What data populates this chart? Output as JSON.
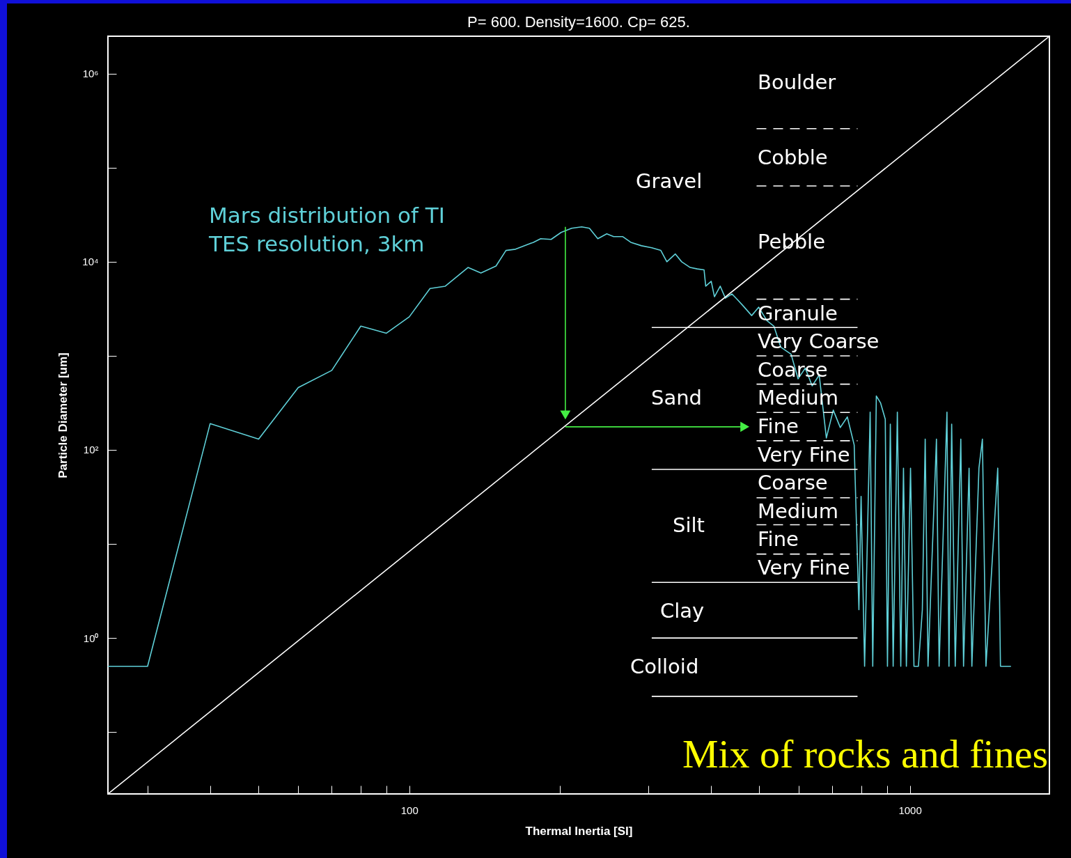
{
  "chart_data": {
    "type": "line",
    "title": "P= 600. Density=1600. Cp= 625.",
    "xlabel": "Thermal Inertia [SI]",
    "ylabel": "Particle Diameter [um]",
    "log": "xy",
    "grid": false,
    "xlim": [
      25,
      1900
    ],
    "ylim": [
      0.022,
      2500000
    ],
    "xticks": [
      {
        "value": 30,
        "label": null
      },
      {
        "value": 40,
        "label": null
      },
      {
        "value": 50,
        "label": null
      },
      {
        "value": 60,
        "label": null
      },
      {
        "value": 70,
        "label": null
      },
      {
        "value": 80,
        "label": null
      },
      {
        "value": 90,
        "label": null
      },
      100,
      {
        "value": 200,
        "label": null
      },
      {
        "value": 300,
        "label": null
      },
      {
        "value": 400,
        "label": null
      },
      {
        "value": 500,
        "label": null
      },
      {
        "value": 600,
        "label": null
      },
      {
        "value": 700,
        "label": null
      },
      {
        "value": 800,
        "label": null
      },
      {
        "value": 900,
        "label": null
      },
      1000
    ],
    "yticks": [
      {
        "value": 0.1,
        "label": null
      },
      {
        "value": 1,
        "label": "10⁰"
      },
      {
        "value": 10,
        "label": null
      },
      {
        "value": 100,
        "label": "10²"
      },
      {
        "value": 1000,
        "label": null
      },
      {
        "value": 10000,
        "label": "10⁴"
      },
      {
        "value": 100000,
        "label": null
      },
      {
        "value": 1000000,
        "label": "10⁶"
      }
    ],
    "series": [
      {
        "name": "Mars distribution of TI\nTES resolution, 3km",
        "color": "#5fd0d8",
        "x": [
          25,
          30,
          40,
          50,
          60,
          70,
          80,
          90,
          100,
          110,
          118,
          131,
          139,
          149,
          156,
          163,
          177,
          183,
          192,
          201,
          211,
          221,
          229,
          238,
          248,
          256,
          267,
          277,
          291,
          305,
          318,
          327,
          340,
          350,
          364,
          376,
          388,
          391,
          401,
          407,
          418,
          428,
          441,
          452,
          463,
          483,
          499,
          518,
          535,
          552,
          579,
          598,
          618,
          638,
          659,
          681,
          703,
          726,
          750,
          774,
          791,
          799,
          812,
          833,
          843,
          857,
          874,
          893,
          902,
          914,
          926,
          944,
          959,
          971,
          984,
          1003,
          1019,
          1040,
          1059,
          1073,
          1087,
          1130,
          1144,
          1186,
          1197,
          1212,
          1232,
          1264,
          1280,
          1313,
          1330,
          1374,
          1396,
          1419,
          1498,
          1517,
          1592
        ],
        "values": [
          0.5,
          0.5,
          190,
          130,
          460,
          700,
          2070,
          1740,
          2600,
          5200,
          5500,
          8700,
          7600,
          9000,
          13200,
          13600,
          16100,
          17600,
          17300,
          20500,
          22700,
          23500,
          22700,
          17600,
          19800,
          18500,
          18500,
          16100,
          14800,
          14100,
          13200,
          10000,
          12100,
          10000,
          8700,
          8400,
          8200,
          5500,
          6200,
          4250,
          5500,
          4100,
          4550,
          3970,
          3460,
          2680,
          3290,
          2370,
          2070,
          1240,
          1040,
          570,
          740,
          480,
          625,
          134,
          265,
          173,
          224,
          113,
          2.0,
          32,
          0.5,
          252,
          0.5,
          374,
          315,
          212,
          0.5,
          188,
          0.5,
          252,
          0.5,
          64,
          0.5,
          64,
          0.5,
          0.5,
          2.0,
          130,
          0.5,
          130,
          0.5,
          252,
          0.5,
          188,
          0.5,
          130,
          0.5,
          64,
          0.5,
          64,
          130,
          0.5,
          64,
          0.5,
          0.5
        ]
      },
      {
        "color": "#ffffff",
        "x": [
          25,
          1900
        ],
        "values": [
          0.022,
          2500000
        ]
      },
      {
        "color": "#ffffff",
        "line_style": "solid",
        "x": [
          305,
          786
        ],
        "values": [
          2000,
          2000
        ]
      },
      {
        "color": "#ffffff",
        "line_style": "solid",
        "x": [
          305,
          786
        ],
        "values": [
          62,
          62
        ]
      },
      {
        "color": "#ffffff",
        "line_style": "solid",
        "x": [
          305,
          786
        ],
        "values": [
          3.9,
          3.9
        ]
      },
      {
        "color": "#ffffff",
        "line_style": "solid",
        "x": [
          305,
          786
        ],
        "values": [
          1.0,
          1.0
        ]
      },
      {
        "color": "#ffffff",
        "line_style": "solid",
        "x": [
          305,
          786
        ],
        "values": [
          0.24,
          0.24
        ]
      },
      {
        "color": "#ffffff",
        "line_style": "dashed",
        "x": [
          494,
          786
        ],
        "values": [
          260000,
          260000
        ]
      },
      {
        "color": "#ffffff",
        "line_style": "dashed",
        "x": [
          494,
          786
        ],
        "values": [
          64000,
          64000
        ]
      },
      {
        "color": "#ffffff",
        "line_style": "dashed",
        "x": [
          494,
          786
        ],
        "values": [
          4000,
          4000
        ]
      },
      {
        "color": "#ffffff",
        "line_style": "dashed",
        "x": [
          494,
          786
        ],
        "values": [
          1000,
          1000
        ]
      },
      {
        "color": "#ffffff",
        "line_style": "dashed",
        "x": [
          494,
          786
        ],
        "values": [
          500,
          500
        ]
      },
      {
        "color": "#ffffff",
        "line_style": "dashed",
        "x": [
          494,
          786
        ],
        "values": [
          250,
          250
        ]
      },
      {
        "color": "#ffffff",
        "line_style": "dashed",
        "x": [
          494,
          786
        ],
        "values": [
          125,
          125
        ]
      },
      {
        "color": "#ffffff",
        "line_style": "dashed",
        "x": [
          494,
          786
        ],
        "values": [
          31,
          31
        ]
      },
      {
        "color": "#ffffff",
        "line_style": "dashed",
        "x": [
          494,
          786
        ],
        "values": [
          16,
          16
        ]
      },
      {
        "color": "#ffffff",
        "line_style": "dashed",
        "x": [
          494,
          786
        ],
        "values": [
          7.8,
          7.8
        ]
      },
      {
        "color": "#44ee44",
        "marker": "triangle",
        "x": [
          205,
          205
        ],
        "values": [
          23500,
          235
        ]
      },
      {
        "color": "#44ee44",
        "marker": "triangle",
        "x": [
          205,
          468
        ],
        "values": [
          176,
          176
        ]
      }
    ],
    "annotations": [
      "Boulder",
      "Cobble",
      "Gravel",
      "Pebble",
      "Granule",
      "Very Coarse",
      "Coarse",
      "Sand",
      "Medium",
      "Fine",
      "Very Fine",
      "Coarse",
      "Medium",
      "Silt",
      "Fine",
      "Very Fine",
      "Clay",
      "Colloid",
      "Mix of rocks and fines"
    ]
  }
}
